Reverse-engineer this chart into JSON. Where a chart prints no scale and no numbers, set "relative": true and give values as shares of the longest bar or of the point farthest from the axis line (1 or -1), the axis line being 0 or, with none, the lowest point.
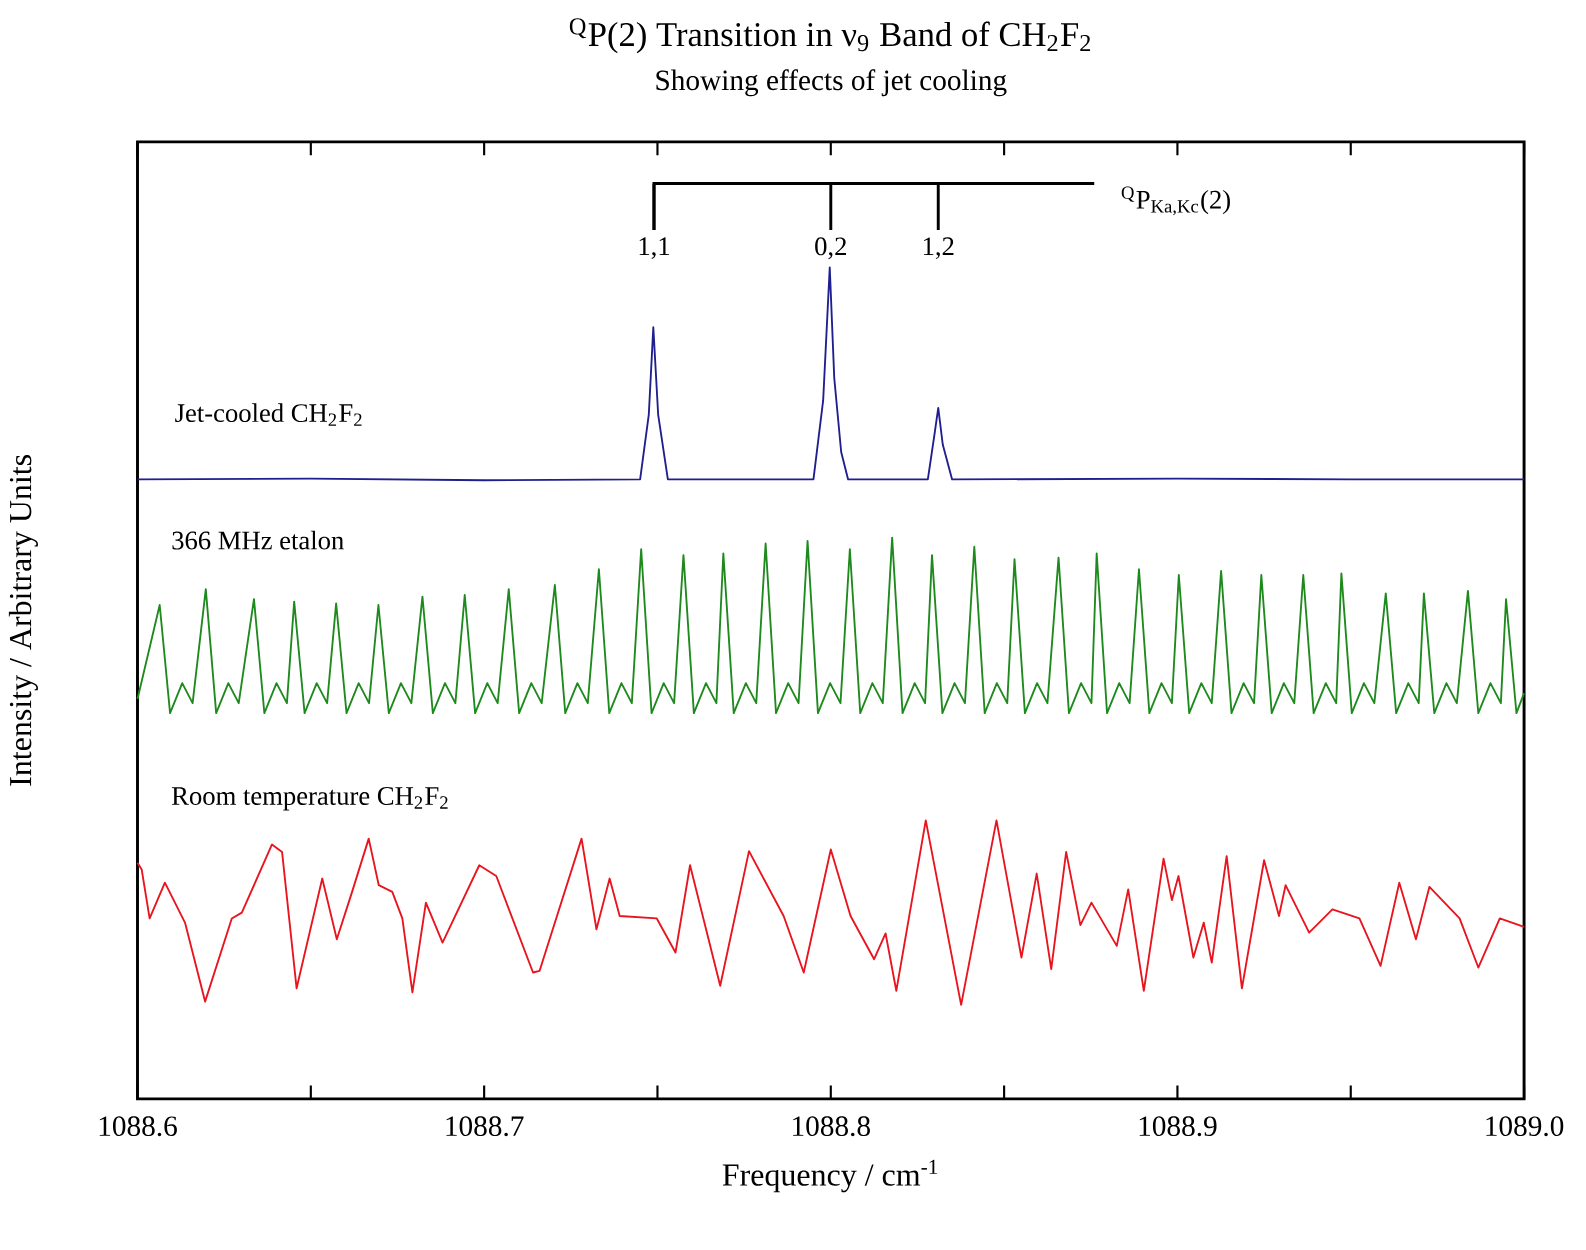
{
  "chart_data": {
    "type": "line",
    "title": "$^{Q}$P(2) Transition in ν$_{9}$ Band of CH$_{2}$F$_{2}$",
    "subtitle": "Showing effects of jet cooling",
    "xlabel": "Frequency / cm$^{-1}$",
    "ylabel": "Intensity / Arbitrary Units",
    "relative": true,
    "xlim": [
      1088.6,
      1089.0
    ],
    "xticks": [
      1088.6,
      {
        "value": 1088.65,
        "label": null
      },
      1088.7,
      {
        "value": 1088.75,
        "label": null
      },
      1088.8,
      {
        "value": 1088.85,
        "label": null
      },
      1088.9,
      {
        "value": 1088.95,
        "label": null
      },
      {
        "value": 1089.0,
        "label": "1089.0"
      }
    ],
    "annotations": [
      {
        "text": "1,1",
        "x": 1088.749
      },
      {
        "text": "0,2",
        "x": 1088.8
      },
      {
        "text": "1,2",
        "x": 1088.831
      },
      "$^{Q}$P$_{Ka,Kc}$(2)"
    ],
    "series": [
      {
        "name": "Jet-cooled CH$_{2}$F$_{2}$",
        "color": "#1f1f8f",
        "x": [
          1088.6,
          1088.65,
          1088.7,
          1088.745,
          1088.7475,
          1088.7488,
          1088.7502,
          1088.753,
          1088.795,
          1088.7978,
          1088.7997,
          1088.801,
          1088.803,
          1088.805,
          1088.828,
          1088.8298,
          1088.831,
          1088.8323,
          1088.835,
          1088.9,
          1088.95,
          1089.0
        ],
        "values": [
          0.745,
          0.746,
          0.744,
          0.745,
          0.823,
          0.928,
          0.823,
          0.745,
          0.745,
          0.84,
          1.0,
          0.867,
          0.778,
          0.745,
          0.745,
          0.796,
          0.831,
          0.787,
          0.745,
          0.746,
          0.745,
          0.745
        ]
      },
      {
        "name": "366 MHz etalon",
        "color": "#1e8a1e",
        "x": [
          1088.6,
          1088.6064,
          1088.6094,
          1088.6129,
          1088.6159,
          1088.6197,
          1088.6227,
          1088.6262,
          1088.6292,
          1088.6336,
          1088.6366,
          1088.6401,
          1088.6431,
          1088.6452,
          1088.6482,
          1088.6517,
          1088.6547,
          1088.6573,
          1088.6603,
          1088.6638,
          1088.6668,
          1088.6695,
          1088.6725,
          1088.676,
          1088.679,
          1088.6822,
          1088.6852,
          1088.6887,
          1088.6917,
          1088.6944,
          1088.6974,
          1088.7009,
          1088.7039,
          1088.7071,
          1088.7101,
          1088.7136,
          1088.7166,
          1088.7204,
          1088.7234,
          1088.7269,
          1088.7299,
          1088.7331,
          1088.7361,
          1088.7396,
          1088.7426,
          1088.7453,
          1088.7483,
          1088.7518,
          1088.7548,
          1088.7575,
          1088.7605,
          1088.764,
          1088.767,
          1088.769,
          1088.772,
          1088.7755,
          1088.7785,
          1088.7812,
          1088.7842,
          1088.7877,
          1088.7907,
          1088.7933,
          1088.7963,
          1088.7998,
          1088.8028,
          1088.8055,
          1088.8085,
          1088.812,
          1088.815,
          1088.8177,
          1088.8207,
          1088.8242,
          1088.8272,
          1088.8292,
          1088.8322,
          1088.8357,
          1088.8387,
          1088.8414,
          1088.8444,
          1088.8479,
          1088.8509,
          1088.853,
          1088.856,
          1088.8595,
          1088.8625,
          1088.8657,
          1088.8687,
          1088.8722,
          1088.8752,
          1088.8767,
          1088.8797,
          1088.8832,
          1088.8862,
          1088.8889,
          1088.8919,
          1088.8954,
          1088.8984,
          1088.9004,
          1088.9034,
          1088.9069,
          1088.9099,
          1088.9126,
          1088.9156,
          1088.9191,
          1088.9221,
          1088.9242,
          1088.9272,
          1088.9307,
          1088.9337,
          1088.9363,
          1088.9393,
          1088.9428,
          1088.9458,
          1088.9473,
          1088.9503,
          1088.9538,
          1088.9568,
          1088.9601,
          1088.9631,
          1088.9666,
          1088.9696,
          1088.9711,
          1088.9741,
          1088.9776,
          1088.9806,
          1088.9838,
          1088.9868,
          1088.9903,
          1088.9933,
          1088.9948,
          1088.9978,
          1089.0
        ],
        "values": [
          0.481,
          0.594,
          0.464,
          0.5,
          0.476,
          0.613,
          0.464,
          0.5,
          0.476,
          0.601,
          0.464,
          0.5,
          0.476,
          0.598,
          0.464,
          0.5,
          0.476,
          0.596,
          0.464,
          0.5,
          0.476,
          0.594,
          0.464,
          0.5,
          0.476,
          0.604,
          0.464,
          0.5,
          0.476,
          0.606,
          0.464,
          0.5,
          0.476,
          0.613,
          0.464,
          0.5,
          0.476,
          0.618,
          0.464,
          0.5,
          0.476,
          0.637,
          0.464,
          0.5,
          0.476,
          0.661,
          0.464,
          0.5,
          0.476,
          0.654,
          0.464,
          0.5,
          0.476,
          0.656,
          0.464,
          0.5,
          0.476,
          0.668,
          0.464,
          0.5,
          0.476,
          0.671,
          0.464,
          0.5,
          0.476,
          0.661,
          0.464,
          0.5,
          0.476,
          0.675,
          0.464,
          0.5,
          0.476,
          0.654,
          0.464,
          0.5,
          0.476,
          0.664,
          0.464,
          0.5,
          0.476,
          0.649,
          0.464,
          0.5,
          0.476,
          0.651,
          0.464,
          0.5,
          0.476,
          0.656,
          0.464,
          0.5,
          0.476,
          0.637,
          0.464,
          0.5,
          0.476,
          0.63,
          0.464,
          0.5,
          0.476,
          0.635,
          0.464,
          0.5,
          0.476,
          0.63,
          0.464,
          0.5,
          0.476,
          0.63,
          0.464,
          0.5,
          0.476,
          0.632,
          0.464,
          0.5,
          0.476,
          0.608,
          0.464,
          0.5,
          0.476,
          0.608,
          0.464,
          0.5,
          0.476,
          0.611,
          0.464,
          0.5,
          0.476,
          0.601,
          0.464,
          0.488
        ]
      },
      {
        "name": "Room temperature CH$_{2}$F$_{2}$",
        "color": "#e8141e",
        "x": [
          1088.6,
          1088.6012,
          1088.6035,
          1088.6079,
          1088.6137,
          1088.6195,
          1088.6272,
          1088.6301,
          1088.6388,
          1088.6417,
          1088.6459,
          1088.6533,
          1088.6575,
          1088.6619,
          1088.6667,
          1088.6696,
          1088.6735,
          1088.6764,
          1088.6793,
          1088.6832,
          1088.688,
          1088.6986,
          1088.7035,
          1088.7141,
          1088.716,
          1088.7281,
          1088.7324,
          1088.7362,
          1088.7391,
          1088.7498,
          1088.7552,
          1088.7594,
          1088.7681,
          1088.7764,
          1088.7864,
          1088.7922,
          1088.8,
          1088.8057,
          1088.8125,
          1088.8158,
          1088.8189,
          1088.8274,
          1088.8376,
          1088.8478,
          1088.855,
          1088.8594,
          1088.8636,
          1088.8679,
          1088.872,
          1088.8752,
          1088.8825,
          1088.8858,
          1088.8903,
          1088.896,
          1088.8984,
          1088.9003,
          1088.9046,
          1088.9076,
          1088.9099,
          1088.9142,
          1088.9186,
          1088.925,
          1088.9293,
          1088.9312,
          1088.938,
          1088.9447,
          1088.9525,
          1088.9586,
          1088.964,
          1088.9688,
          1088.9727,
          1088.9814,
          1088.9868,
          1088.993,
          1089.0
        ],
        "values": [
          0.284,
          0.276,
          0.217,
          0.26,
          0.212,
          0.117,
          0.217,
          0.224,
          0.306,
          0.297,
          0.133,
          0.265,
          0.192,
          0.249,
          0.313,
          0.257,
          0.249,
          0.217,
          0.128,
          0.236,
          0.188,
          0.281,
          0.268,
          0.152,
          0.154,
          0.313,
          0.204,
          0.265,
          0.22,
          0.217,
          0.176,
          0.281,
          0.136,
          0.298,
          0.22,
          0.152,
          0.3,
          0.22,
          0.168,
          0.199,
          0.13,
          0.335,
          0.113,
          0.335,
          0.17,
          0.271,
          0.156,
          0.297,
          0.209,
          0.236,
          0.184,
          0.252,
          0.13,
          0.289,
          0.239,
          0.268,
          0.17,
          0.212,
          0.164,
          0.292,
          0.133,
          0.287,
          0.22,
          0.257,
          0.2,
          0.228,
          0.217,
          0.16,
          0.26,
          0.192,
          0.255,
          0.217,
          0.158,
          0.217,
          0.207
        ]
      }
    ]
  }
}
